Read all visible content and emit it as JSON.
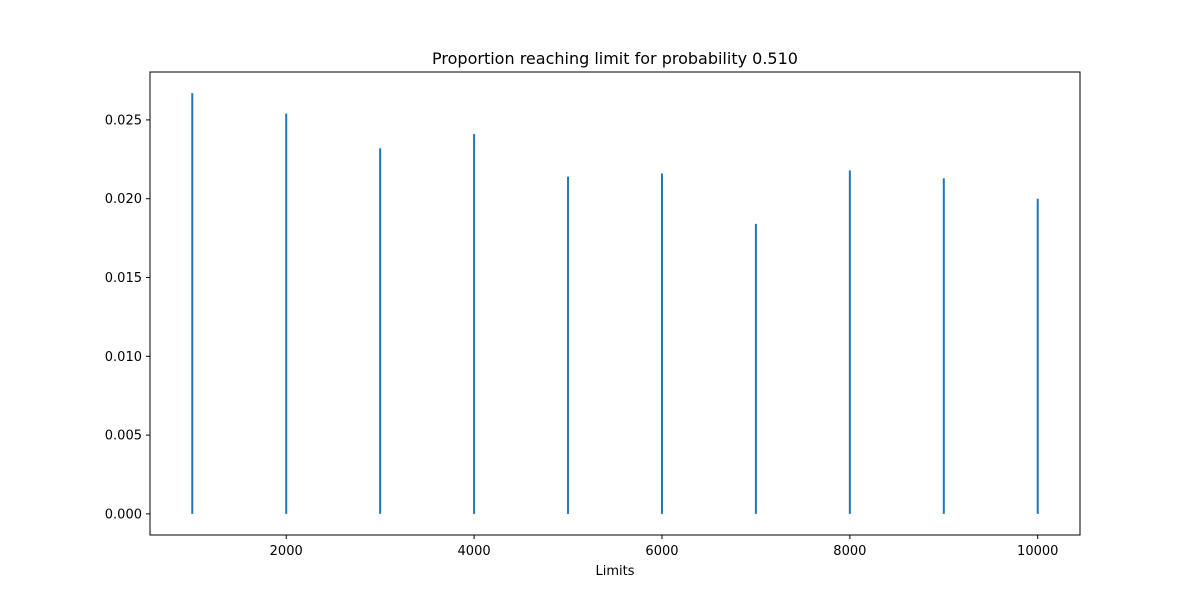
{
  "chart_data": {
    "type": "bar",
    "title": "Proportion reaching limit for probability 0.510",
    "xlabel": "Limits",
    "ylabel": "",
    "x": [
      1000,
      2000,
      3000,
      4000,
      5000,
      6000,
      7000,
      8000,
      9000,
      10000
    ],
    "values": [
      0.0267,
      0.0254,
      0.0232,
      0.0241,
      0.0214,
      0.0216,
      0.0184,
      0.0218,
      0.0213,
      0.02
    ],
    "xlim": [
      550,
      10450
    ],
    "ylim": [
      -0.00134,
      0.02804
    ],
    "x_ticks": [
      2000,
      4000,
      6000,
      8000,
      10000
    ],
    "x_tick_labels": [
      "2000",
      "4000",
      "6000",
      "8000",
      "10000"
    ],
    "y_ticks": [
      0.0,
      0.005,
      0.01,
      0.015,
      0.02,
      0.025
    ],
    "y_tick_labels": [
      "0.000",
      "0.005",
      "0.010",
      "0.015",
      "0.020",
      "0.025"
    ],
    "grid": false,
    "bar_color": "#1f77b4"
  }
}
